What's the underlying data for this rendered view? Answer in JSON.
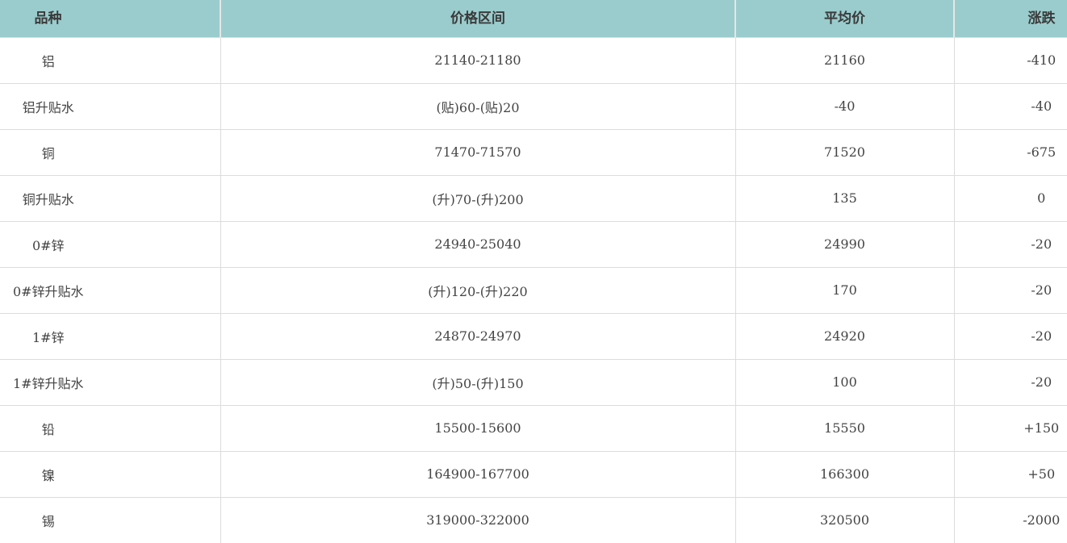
{
  "colors": {
    "header_bg": "#9acccd",
    "text": "#444444",
    "border": "#dcdcdc"
  },
  "headers": [
    "品种",
    "价格区间",
    "平均价",
    "涨跌"
  ],
  "rows": [
    {
      "name": "铝",
      "range": "21140-21180",
      "avg": "21160",
      "change": "-410"
    },
    {
      "name": "铝升贴水",
      "range": "(贴)60-(贴)20",
      "avg": "-40",
      "change": "-40"
    },
    {
      "name": "铜",
      "range": "71470-71570",
      "avg": "71520",
      "change": "-675"
    },
    {
      "name": "铜升贴水",
      "range": "(升)70-(升)200",
      "avg": "135",
      "change": "0"
    },
    {
      "name": "0#锌",
      "range": "24940-25040",
      "avg": "24990",
      "change": "-20"
    },
    {
      "name": "0#锌升贴水",
      "range": "(升)120-(升)220",
      "avg": "170",
      "change": "-20"
    },
    {
      "name": "1#锌",
      "range": "24870-24970",
      "avg": "24920",
      "change": "-20"
    },
    {
      "name": "1#锌升贴水",
      "range": "(升)50-(升)150",
      "avg": "100",
      "change": "-20"
    },
    {
      "name": "铅",
      "range": "15500-15600",
      "avg": "15550",
      "change": "+150"
    },
    {
      "name": "镍",
      "range": "164900-167700",
      "avg": "166300",
      "change": "+50"
    },
    {
      "name": "锡",
      "range": "319000-322000",
      "avg": "320500",
      "change": "-2000"
    }
  ]
}
